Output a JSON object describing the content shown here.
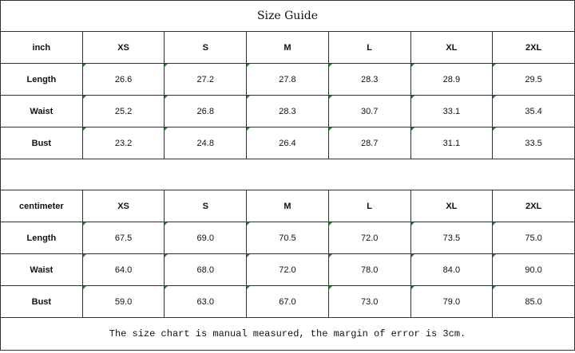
{
  "title": "Size Guide",
  "tables": [
    {
      "unit": "inch",
      "sizes": [
        "XS",
        "S",
        "M",
        "L",
        "XL",
        "2XL"
      ],
      "rows": [
        {
          "label": "Length",
          "values": [
            "26.6",
            "27.2",
            "27.8",
            "28.3",
            "28.9",
            "29.5"
          ]
        },
        {
          "label": "Waist",
          "values": [
            "25.2",
            "26.8",
            "28.3",
            "30.7",
            "33.1",
            "35.4"
          ]
        },
        {
          "label": "Bust",
          "values": [
            "23.2",
            "24.8",
            "26.4",
            "28.7",
            "31.1",
            "33.5"
          ]
        }
      ]
    },
    {
      "unit": "centimeter",
      "sizes": [
        "XS",
        "S",
        "M",
        "L",
        "XL",
        "2XL"
      ],
      "rows": [
        {
          "label": "Length",
          "values": [
            "67.5",
            "69.0",
            "70.5",
            "72.0",
            "73.5",
            "75.0"
          ]
        },
        {
          "label": "Waist",
          "values": [
            "64.0",
            "68.0",
            "72.0",
            "78.0",
            "84.0",
            "90.0"
          ]
        },
        {
          "label": "Bust",
          "values": [
            "59.0",
            "63.0",
            "67.0",
            "73.0",
            "79.0",
            "85.0"
          ]
        }
      ]
    }
  ],
  "note": "The size chart is manual measured, the margin of error is 3cm.",
  "colors": {
    "cell_marker": "#1a8a1a",
    "border": "#333333"
  }
}
